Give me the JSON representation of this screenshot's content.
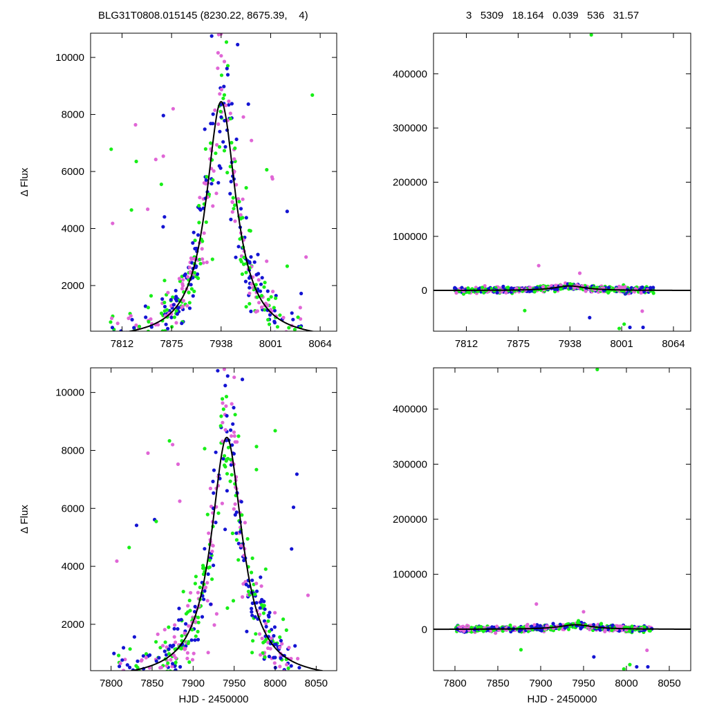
{
  "header": {
    "left": "BLG31T0808.015145 (8230.22, 8675.39,    4)",
    "right": "3   5309   18.164   0.039   536   31.57"
  },
  "colors": {
    "pink": "#e066d6",
    "green": "#18ee18",
    "blue": "#1414d2",
    "model": "#000000"
  },
  "chart_data": [
    {
      "id": "top-left",
      "type": "scatter",
      "xlabel": "",
      "ylabel": "Δ Flux",
      "xlim": [
        7772,
        8085
      ],
      "ylim": [
        400,
        10850
      ],
      "xticks": [
        7812,
        7875,
        7938,
        8001,
        8064
      ],
      "yticks": [
        2000,
        4000,
        6000,
        8000,
        10000
      ],
      "model": {
        "t0": 7938,
        "peak": 8450,
        "tE": 23,
        "base": 80
      },
      "extreme_points": [
        {
          "x": 7800,
          "y": 4180,
          "c": "pink"
        },
        {
          "x": 7824,
          "y": 4650,
          "c": "green"
        },
        {
          "x": 7862,
          "y": 5550,
          "c": "green"
        },
        {
          "x": 7877,
          "y": 8200,
          "c": "pink"
        },
        {
          "x": 8022,
          "y": 4600,
          "c": "blue"
        },
        {
          "x": 8054,
          "y": 8680,
          "c": "green"
        },
        {
          "x": 7959,
          "y": 10450,
          "c": "blue"
        },
        {
          "x": 8046,
          "y": 3000,
          "c": "pink"
        },
        {
          "x": 7935,
          "y": 10800,
          "c": "pink"
        },
        {
          "x": 7926,
          "y": 10750,
          "c": "blue"
        }
      ]
    },
    {
      "id": "top-right",
      "type": "scatter",
      "xlabel": "",
      "ylabel": "",
      "xlim": [
        7772,
        8085
      ],
      "ylim": [
        -75000,
        475000
      ],
      "xticks": [
        7812,
        7875,
        7938,
        8001,
        8064
      ],
      "yticks": [
        0,
        100000,
        200000,
        300000,
        400000
      ],
      "model": {
        "t0": 7938,
        "peak": 8450,
        "tE": 23,
        "base": 80
      },
      "extreme_points": [
        {
          "x": 7964,
          "y": 472000,
          "c": "green"
        },
        {
          "x": 7900,
          "y": 46000,
          "c": "pink"
        },
        {
          "x": 7950,
          "y": 32000,
          "c": "pink"
        },
        {
          "x": 7962,
          "y": -50000,
          "c": "blue"
        },
        {
          "x": 7998,
          "y": -70000,
          "c": "green"
        },
        {
          "x": 8004,
          "y": -62000,
          "c": "green"
        },
        {
          "x": 8011,
          "y": -68000,
          "c": "blue"
        },
        {
          "x": 8027,
          "y": -68000,
          "c": "blue"
        },
        {
          "x": 8026,
          "y": -38000,
          "c": "pink"
        },
        {
          "x": 7883,
          "y": -37000,
          "c": "green"
        }
      ]
    },
    {
      "id": "bottom-left",
      "type": "scatter",
      "xlabel": "HJD - 2450000",
      "ylabel": "Δ Flux",
      "xlim": [
        7775,
        8075
      ],
      "ylim": [
        400,
        10850
      ],
      "xticks": [
        7800,
        7850,
        7900,
        7950,
        8000,
        8050
      ],
      "yticks": [
        2000,
        4000,
        6000,
        8000,
        10000
      ],
      "model": {
        "t0": 7941,
        "peak": 8450,
        "tE": 23,
        "base": 80
      },
      "extreme_points": [
        {
          "x": 7807,
          "y": 4180,
          "c": "pink"
        },
        {
          "x": 7822,
          "y": 4650,
          "c": "green"
        },
        {
          "x": 7855,
          "y": 5550,
          "c": "green"
        },
        {
          "x": 7875,
          "y": 8200,
          "c": "pink"
        },
        {
          "x": 8020,
          "y": 4600,
          "c": "blue"
        },
        {
          "x": 8000,
          "y": 8680,
          "c": "green"
        },
        {
          "x": 7960,
          "y": 10450,
          "c": "blue"
        },
        {
          "x": 8040,
          "y": 3000,
          "c": "pink"
        },
        {
          "x": 7938,
          "y": 10800,
          "c": "pink"
        },
        {
          "x": 7930,
          "y": 10750,
          "c": "blue"
        }
      ]
    },
    {
      "id": "bottom-right",
      "type": "scatter",
      "xlabel": "HJD - 2450000",
      "ylabel": "",
      "xlim": [
        7775,
        8075
      ],
      "ylim": [
        -75000,
        475000
      ],
      "xticks": [
        7800,
        7850,
        7900,
        7950,
        8000,
        8050
      ],
      "yticks": [
        0,
        100000,
        200000,
        300000,
        400000
      ],
      "model": {
        "t0": 7941,
        "peak": 8450,
        "tE": 23,
        "base": 80
      },
      "extreme_points": [
        {
          "x": 7966,
          "y": 472000,
          "c": "green"
        },
        {
          "x": 7895,
          "y": 46000,
          "c": "pink"
        },
        {
          "x": 7950,
          "y": 32000,
          "c": "pink"
        },
        {
          "x": 7962,
          "y": -50000,
          "c": "blue"
        },
        {
          "x": 7997,
          "y": -72000,
          "c": "green"
        },
        {
          "x": 8004,
          "y": -64000,
          "c": "green"
        },
        {
          "x": 8012,
          "y": -68000,
          "c": "blue"
        },
        {
          "x": 8025,
          "y": -68000,
          "c": "blue"
        },
        {
          "x": 8024,
          "y": -38000,
          "c": "pink"
        },
        {
          "x": 7877,
          "y": -37000,
          "c": "green"
        }
      ]
    }
  ]
}
